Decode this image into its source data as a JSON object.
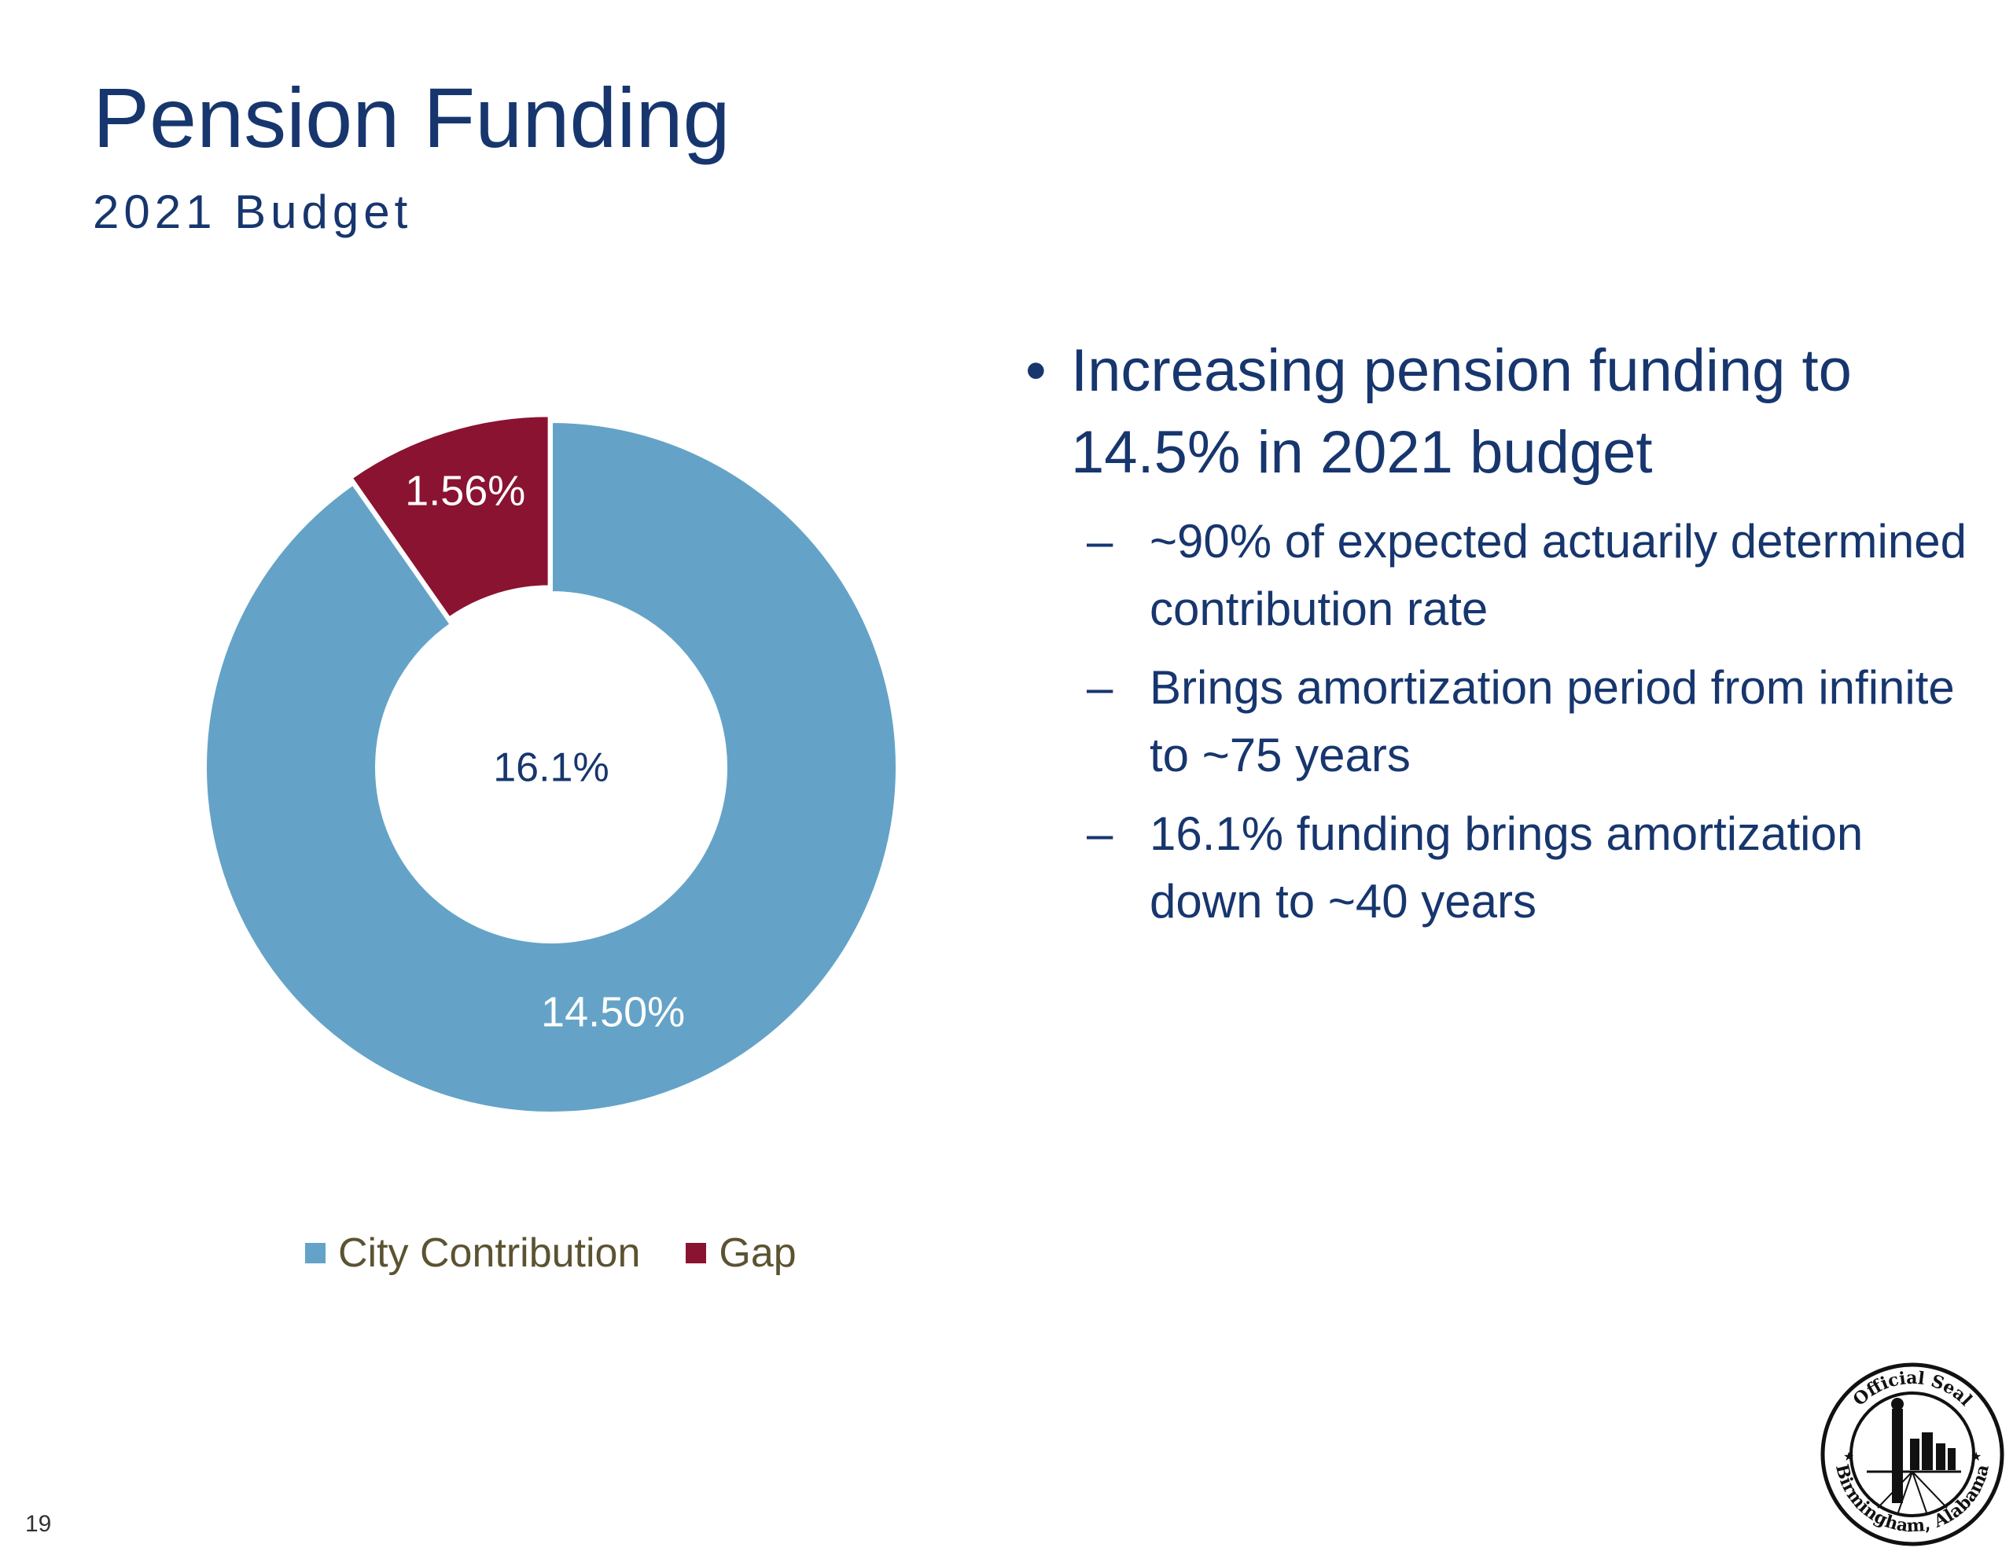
{
  "slide": {
    "title": "Pension Funding",
    "subtitle": "2021 Budget",
    "page_number": "19"
  },
  "chart_data": {
    "type": "pie",
    "variant": "doughnut",
    "center_label": "16.1%",
    "series": [
      {
        "name": "City Contribution",
        "value": 14.5,
        "label": "14.50%",
        "color": "#64a3c7"
      },
      {
        "name": "Gap",
        "value": 1.56,
        "label": "1.56%",
        "color": "#8a1331"
      }
    ],
    "legend": {
      "position": "bottom",
      "items": [
        "City Contribution",
        "Gap"
      ]
    }
  },
  "bullets": {
    "main": "Increasing pension funding to 14.5% in 2021 budget",
    "sub_items": [
      "~90% of expected actuarily determined contribution rate",
      "Brings amortization period from infinite to ~75 years",
      "16.1% funding brings amortization down to ~40 years"
    ]
  },
  "seal": {
    "top_text": "Official Seal",
    "bottom_text": "Birmingham, Alabama"
  },
  "colors": {
    "title": "#17366e",
    "city_contribution": "#64a3c7",
    "gap": "#8a1331",
    "legend_text": "#5b5331"
  }
}
